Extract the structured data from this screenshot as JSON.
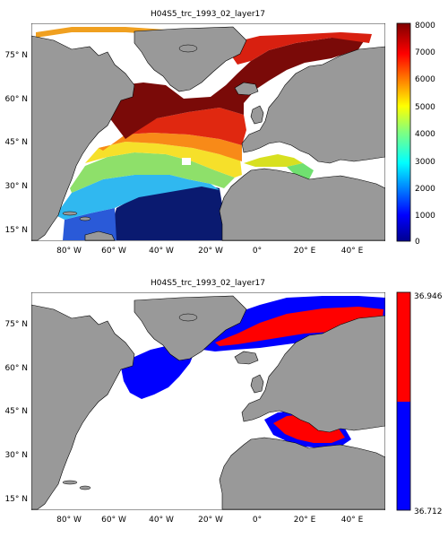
{
  "panels": [
    {
      "title": "H04S5_trc_1993_02_layer17",
      "colorbar_ticks": [
        "0",
        "1000",
        "2000",
        "3000",
        "4000",
        "5000",
        "6000",
        "7000",
        "8000"
      ],
      "colormap": "jet"
    },
    {
      "title": "H04S5_trc_1993_02_layer17",
      "colorbar_ticks": [
        "36.946",
        "36.712"
      ],
      "colors": {
        "upper": "#ff0000",
        "lower": "#0000ff"
      }
    }
  ],
  "lat_ticks": [
    "75° N",
    "60° N",
    "45° N",
    "30° N",
    "15° N"
  ],
  "lon_ticks": [
    "80° W",
    "60° W",
    "40° W",
    "20° W",
    "0°",
    "20° E",
    "40° E"
  ],
  "colors": {
    "land": "#999999",
    "ocean_nodata": "#ffffff"
  }
}
